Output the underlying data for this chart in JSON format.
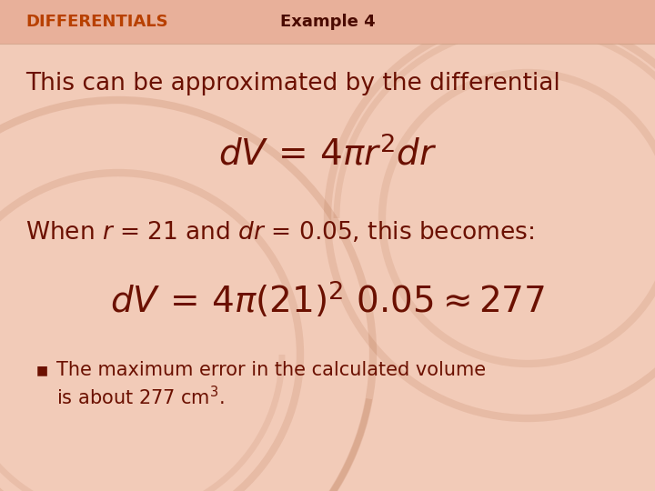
{
  "fig_width": 7.2,
  "fig_height": 5.4,
  "dpi": 100,
  "bg_color": "#f2cbb8",
  "header_bg_color": "#e8b09a",
  "header_text_color": "#b84000",
  "body_text_color": "#6B1000",
  "title_left": "DIFFERENTIALS",
  "title_right": "Example 4",
  "line1": "This can be approximated by the differential",
  "bullet_line1": "The maximum error in the calculated volume",
  "bullet_line2": "is about 277 cm"
}
